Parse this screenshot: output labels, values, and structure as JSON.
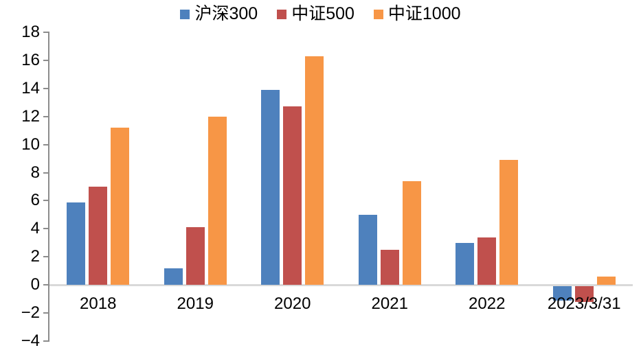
{
  "chart_data": {
    "type": "bar",
    "title": "",
    "xlabel": "",
    "ylabel": "",
    "categories": [
      "2018",
      "2019",
      "2020",
      "2021",
      "2022",
      "2023/3/31"
    ],
    "series": [
      {
        "name": "沪深300",
        "color": "#4E81BD",
        "values": [
          5.9,
          1.2,
          13.9,
          5.0,
          3.0,
          -1.0
        ]
      },
      {
        "name": "中证500",
        "color": "#C0504D",
        "values": [
          7.0,
          4.1,
          12.7,
          2.5,
          3.4,
          -1.1
        ]
      },
      {
        "name": "中证1000",
        "color": "#F79646",
        "values": [
          11.2,
          12.0,
          16.3,
          7.4,
          8.9,
          0.6
        ]
      }
    ],
    "ylim": [
      -4,
      18
    ],
    "yticks": [
      18,
      16,
      14,
      12,
      10,
      8,
      6,
      4,
      2,
      0,
      -2,
      -4
    ],
    "grid": "zero-baseline-only",
    "legend_position": "top-center",
    "axis_color": "#8C8C8C",
    "zero_line_color": "#D9D9D9",
    "text_color": "#000000"
  }
}
